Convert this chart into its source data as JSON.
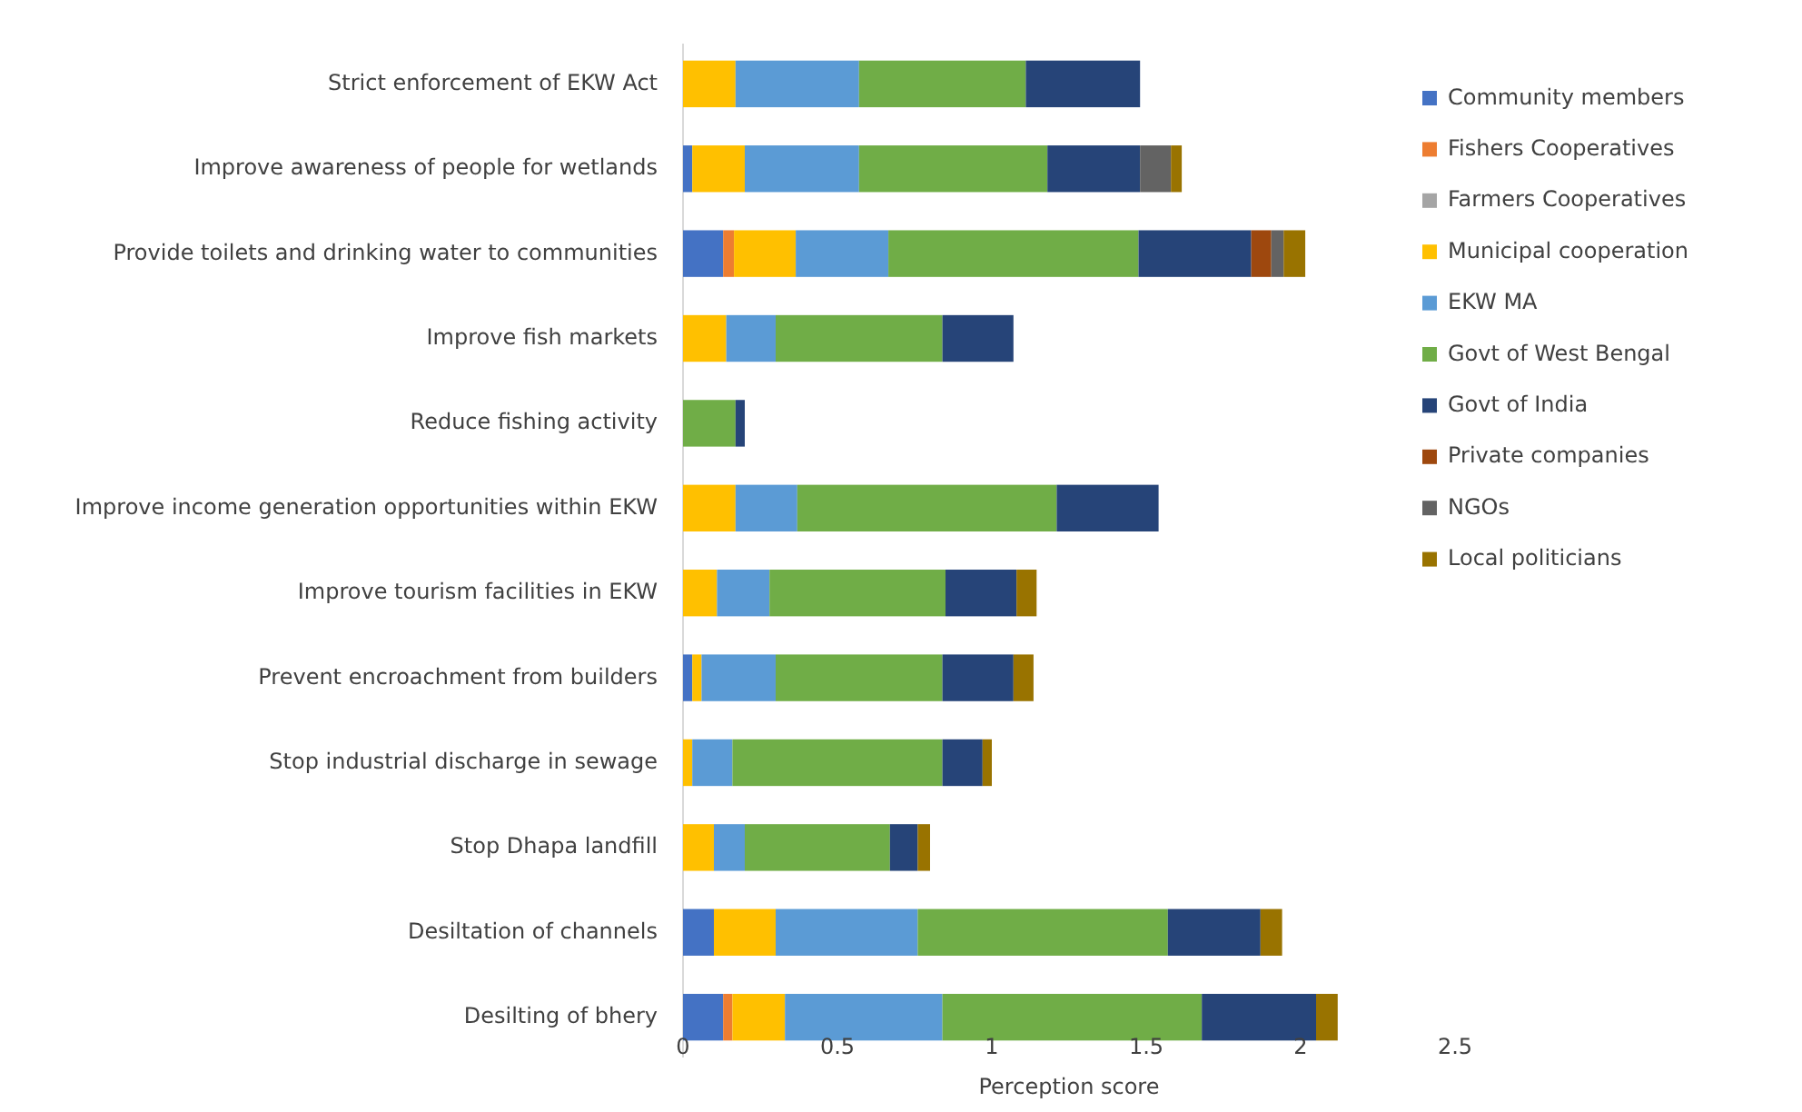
{
  "chart_data": {
    "type": "bar",
    "orientation": "horizontal",
    "stacked": true,
    "xlabel": "Perception score",
    "categories": [
      "Strict enforcement of EKW Act",
      "Improve awareness of people for wetlands",
      "Provide toilets and drinking water to communities",
      "Improve fish markets",
      "Reduce fishing activity",
      "Improve income generation opportunities within EKW",
      "Improve tourism facilities in EKW",
      "Prevent encroachment from builders",
      "Stop industrial discharge in sewage",
      "Stop Dhapa landfill",
      "Desiltation of channels",
      "Desilting of  bhery"
    ],
    "series": [
      {
        "name": "Community members",
        "color": "#4472c4",
        "values": [
          0,
          0.03,
          0.13,
          0,
          0,
          0,
          0,
          0.03,
          0,
          0,
          0.1,
          0.13
        ]
      },
      {
        "name": "Fishers Cooperatives",
        "color": "#ed7d31",
        "values": [
          0,
          0,
          0.035,
          0,
          0,
          0,
          0,
          0,
          0,
          0,
          0,
          0.03
        ]
      },
      {
        "name": "Farmers Cooperatives",
        "color": "#a5a5a5",
        "values": [
          0,
          0,
          0,
          0,
          0,
          0,
          0,
          0,
          0,
          0,
          0,
          0
        ]
      },
      {
        "name": "Municipal cooperation",
        "color": "#ffc000",
        "values": [
          0.17,
          0.17,
          0.2,
          0.14,
          0,
          0.17,
          0.11,
          0.03,
          0.03,
          0.1,
          0.2,
          0.17
        ]
      },
      {
        "name": "EKW MA",
        "color": "#5b9bd5",
        "values": [
          0.4,
          0.37,
          0.3,
          0.16,
          0,
          0.2,
          0.17,
          0.24,
          0.13,
          0.1,
          0.46,
          0.51
        ]
      },
      {
        "name": "Govt of West Bengal",
        "color": "#70ad47",
        "values": [
          0.54,
          0.61,
          0.81,
          0.54,
          0.17,
          0.84,
          0.57,
          0.54,
          0.68,
          0.47,
          0.81,
          0.84
        ]
      },
      {
        "name": "Govt of India",
        "color": "#264478",
        "values": [
          0.37,
          0.3,
          0.365,
          0.23,
          0.03,
          0.33,
          0.23,
          0.23,
          0.13,
          0.09,
          0.3,
          0.37
        ]
      },
      {
        "name": "Private companies",
        "color": "#9e480e",
        "values": [
          0,
          0,
          0.065,
          0,
          0,
          0,
          0,
          0,
          0,
          0,
          0,
          0
        ]
      },
      {
        "name": "NGOs",
        "color": "#636363",
        "values": [
          0,
          0.1,
          0.04,
          0,
          0,
          0,
          0,
          0,
          0,
          0,
          0,
          0
        ]
      },
      {
        "name": "Local politicians",
        "color": "#997300",
        "values": [
          0,
          0.035,
          0.07,
          0,
          0,
          0,
          0.065,
          0.065,
          0.03,
          0.04,
          0.07,
          0.07
        ]
      }
    ],
    "xlim": [
      0,
      2.5
    ],
    "xticks": [
      0,
      {
        "value": 0.5,
        "label": "0.5"
      },
      1,
      {
        "value": 1.5,
        "label": "1.5"
      },
      2,
      {
        "value": 2.5,
        "label": "2.5"
      }
    ],
    "grid": false,
    "legend": "right"
  }
}
